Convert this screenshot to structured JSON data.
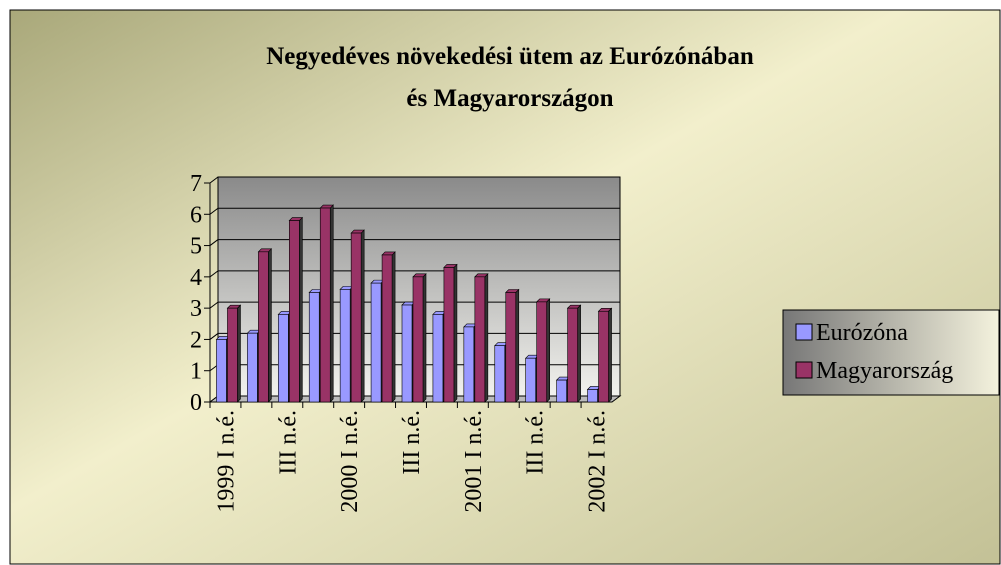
{
  "chart_data": {
    "type": "bar",
    "title": "Negyedéves növekedési ütem az Eurózónában és Magyarországon",
    "categories": [
      "1999 I n.é.",
      null,
      "III n.é.",
      null,
      "2000 I n.é.",
      null,
      "III n.é.",
      null,
      "2001 I n.é.",
      null,
      "III n.é.",
      null,
      "2002 I n.é."
    ],
    "series": [
      {
        "name": "Eurózóna",
        "color": "#9999ff",
        "values": [
          2.0,
          2.2,
          2.8,
          3.5,
          3.6,
          3.8,
          3.1,
          2.8,
          2.4,
          1.8,
          1.4,
          0.7,
          0.4
        ]
      },
      {
        "name": "Magyarország",
        "color": "#993366",
        "values": [
          3.0,
          4.8,
          5.8,
          6.2,
          5.4,
          4.7,
          4.0,
          4.3,
          4.0,
          3.5,
          3.2,
          3.0,
          2.9
        ]
      }
    ],
    "ylim": [
      0,
      7
    ],
    "yticks": [
      0,
      1,
      2,
      3,
      4,
      5,
      6,
      7
    ],
    "grid": true,
    "legend": "right"
  }
}
